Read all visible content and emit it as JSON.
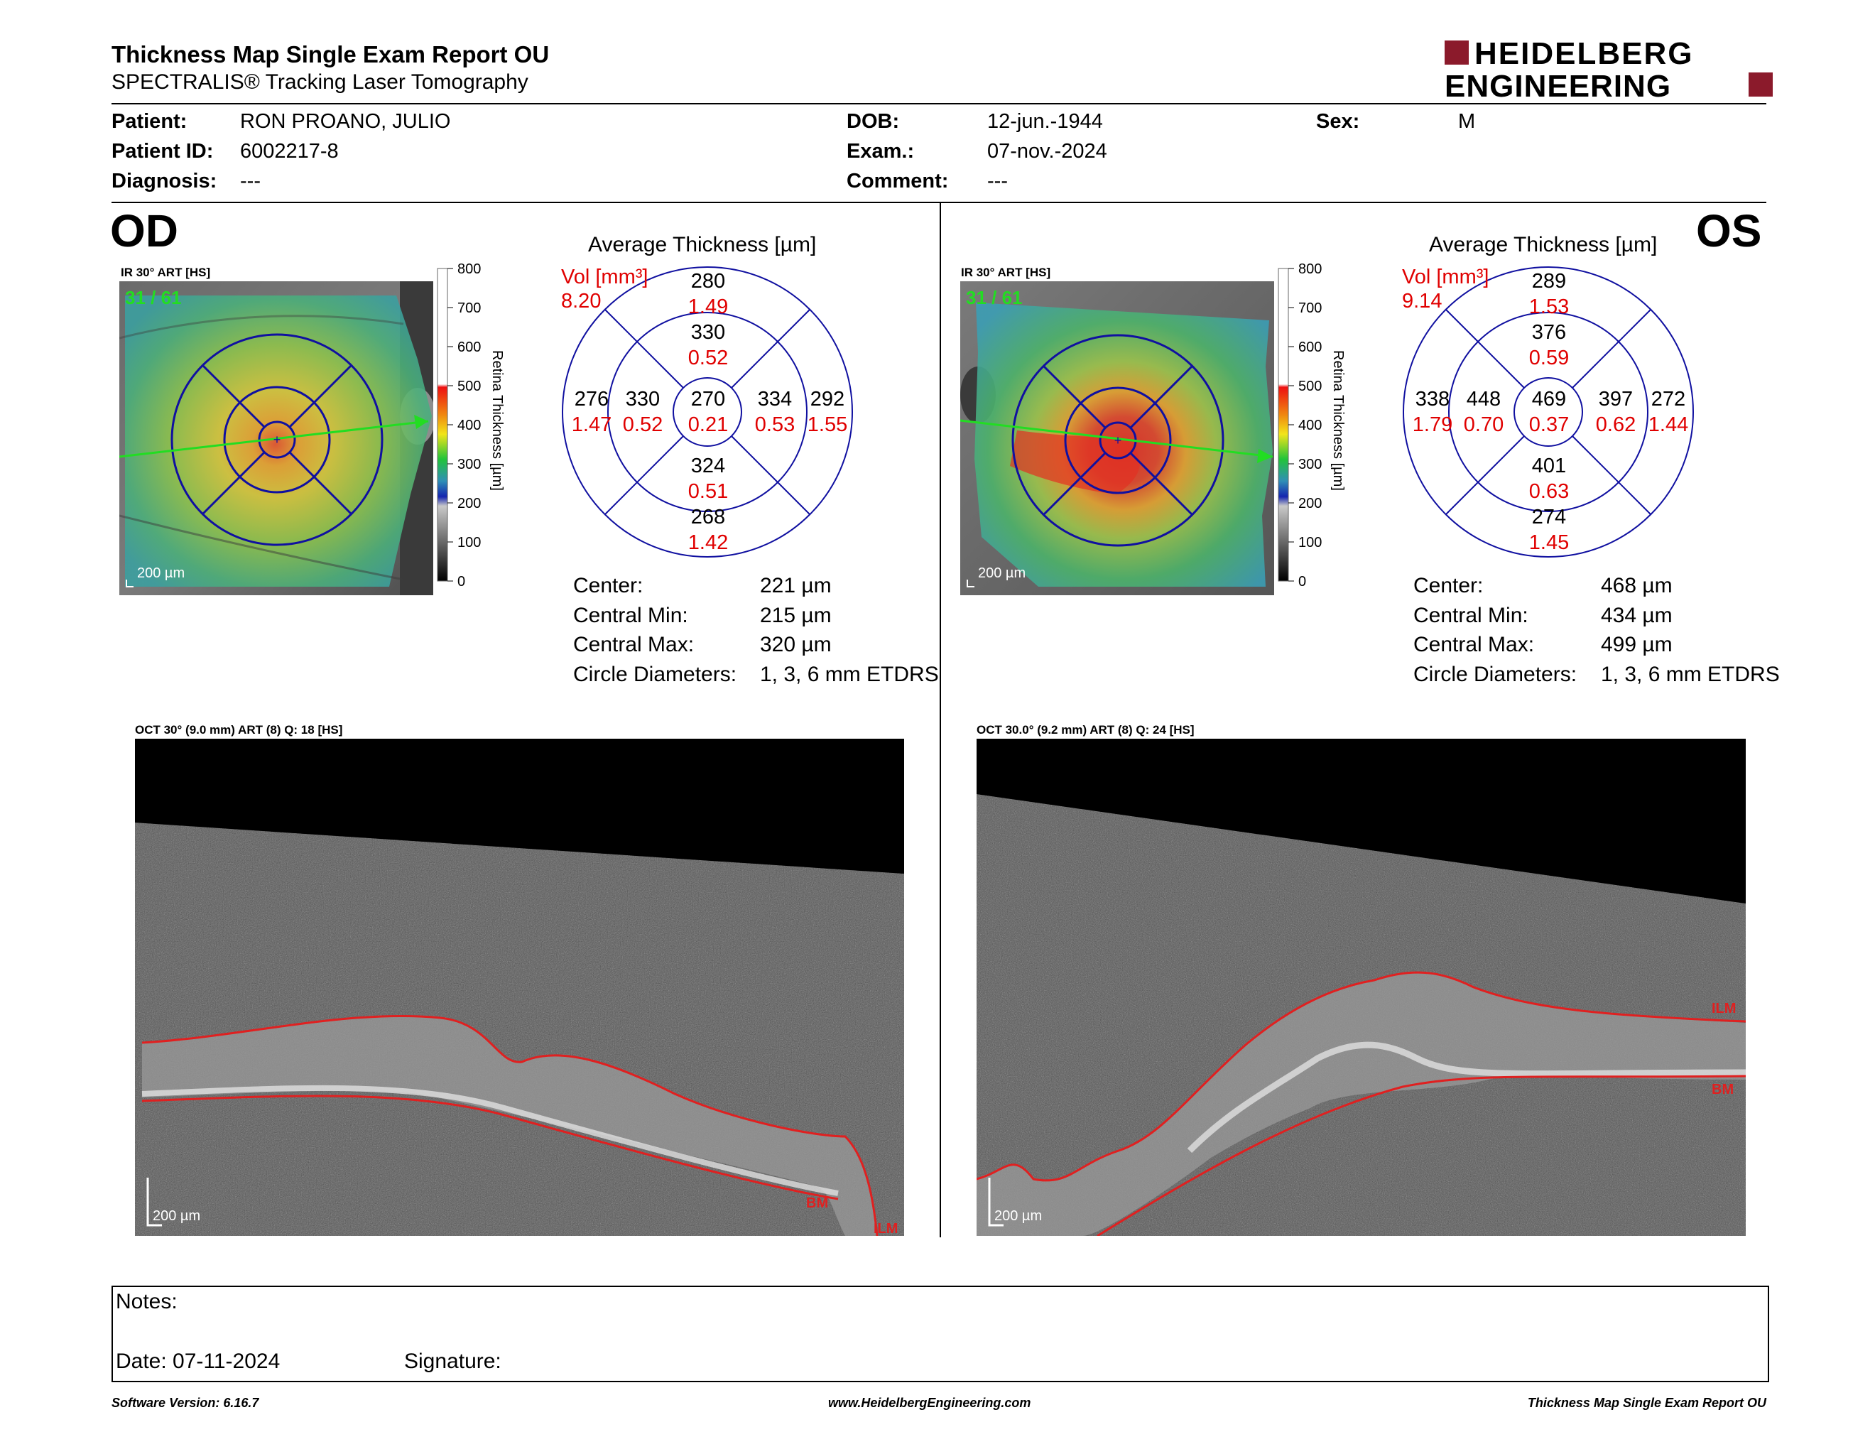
{
  "header": {
    "title": "Thickness Map Single Exam Report OU",
    "subtitle": "SPECTRALIS® Tracking Laser Tomography",
    "brand_line1": "HEIDELBERG",
    "brand_line2": "ENGINEERING",
    "brand_color": "#8b1a2b"
  },
  "patient": {
    "patient_label": "Patient:",
    "patient_value": "RON PROANO, JULIO",
    "id_label": "Patient ID:",
    "id_value": "6002217-8",
    "diagnosis_label": "Diagnosis:",
    "diagnosis_value": "---",
    "dob_label": "DOB:",
    "dob_value": "12-jun.-1944",
    "exam_label": "Exam.:",
    "exam_value": "07-nov.-2024",
    "comment_label": "Comment:",
    "comment_value": "---",
    "sex_label": "Sex:",
    "sex_value": "M"
  },
  "scale": {
    "ticks": [
      "800",
      "700",
      "600",
      "500",
      "400",
      "300",
      "200",
      "100",
      "0"
    ],
    "axis_title": "Retina Thickness [µm]"
  },
  "od": {
    "eye_label": "OD",
    "ir_label": "IR 30° ART [HS]",
    "frame": "31 / 61",
    "scalebar": "200 µm",
    "avg_title": "Average Thickness [µm]",
    "vol_label": "Vol [mm³]",
    "vol_total": "8.20",
    "etdrs": {
      "center": {
        "t": "270",
        "v": "0.21"
      },
      "inner_sup": {
        "t": "330",
        "v": "0.52"
      },
      "inner_inf": {
        "t": "324",
        "v": "0.51"
      },
      "inner_left": {
        "t": "330",
        "v": "0.52"
      },
      "inner_right": {
        "t": "334",
        "v": "0.53"
      },
      "outer_sup": {
        "t": "280",
        "v": "1.49"
      },
      "outer_inf": {
        "t": "268",
        "v": "1.42"
      },
      "outer_left": {
        "t": "276",
        "v": "1.47"
      },
      "outer_right": {
        "t": "292",
        "v": "1.55"
      }
    },
    "stats": {
      "center_label": "Center:",
      "center_value": "221 µm",
      "min_label": "Central Min:",
      "min_value": "215 µm",
      "max_label": "Central Max:",
      "max_value": "320 µm",
      "diam_label": "Circle Diameters:",
      "diam_value": "1, 3, 6 mm ETDRS"
    },
    "oct_label": "OCT 30° (9.0 mm) ART (8) Q: 18 [HS]",
    "oct_scalebar": "200 µm",
    "bm_label": "BM",
    "ilm_label": "ILM"
  },
  "os": {
    "eye_label": "OS",
    "ir_label": "IR 30° ART [HS]",
    "frame": "31 / 61",
    "scalebar": "200 µm",
    "avg_title": "Average Thickness [µm]",
    "vol_label": "Vol [mm³]",
    "vol_total": "9.14",
    "etdrs": {
      "center": {
        "t": "469",
        "v": "0.37"
      },
      "inner_sup": {
        "t": "376",
        "v": "0.59"
      },
      "inner_inf": {
        "t": "401",
        "v": "0.63"
      },
      "inner_left": {
        "t": "448",
        "v": "0.70"
      },
      "inner_right": {
        "t": "397",
        "v": "0.62"
      },
      "outer_sup": {
        "t": "289",
        "v": "1.53"
      },
      "outer_inf": {
        "t": "274",
        "v": "1.45"
      },
      "outer_left": {
        "t": "338",
        "v": "1.79"
      },
      "outer_right": {
        "t": "272",
        "v": "1.44"
      }
    },
    "stats": {
      "center_label": "Center:",
      "center_value": "468 µm",
      "min_label": "Central Min:",
      "min_value": "434 µm",
      "max_label": "Central Max:",
      "max_value": "499 µm",
      "diam_label": "Circle Diameters:",
      "diam_value": "1, 3, 6 mm ETDRS"
    },
    "oct_label": "OCT 30.0° (9.2 mm) ART (8) Q: 24 [HS]",
    "oct_scalebar": "200 µm",
    "bm_label": "BM",
    "ilm_label": "ILM"
  },
  "notes": {
    "notes_label": "Notes:",
    "date_label": "Date: 07-11-2024",
    "signature_label": "Signature:"
  },
  "footer": {
    "software": "Software Version: 6.16.7",
    "website": "www.HeidelbergEngineering.com",
    "report": "Thickness Map Single Exam Report OU"
  }
}
